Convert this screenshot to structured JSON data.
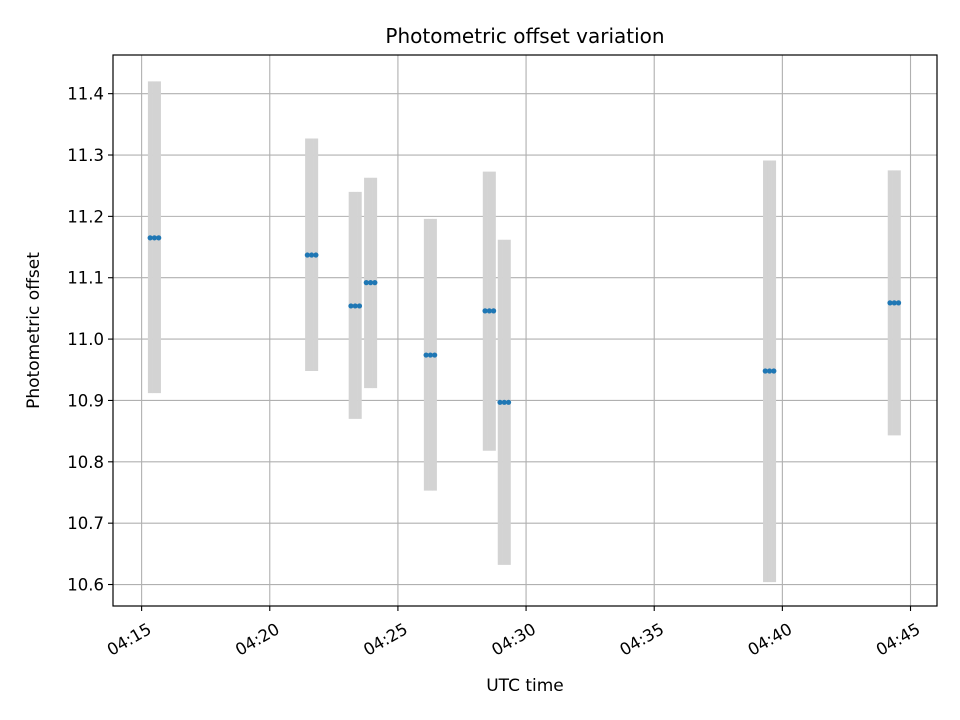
{
  "chart_data": {
    "type": "scatter",
    "title": "Photometric offset variation",
    "xlabel": "UTC time",
    "ylabel": "Photometric offset",
    "x_ticks": [
      "04:15",
      "04:20",
      "04:25",
      "04:30",
      "04:35",
      "04:40",
      "04:45"
    ],
    "y_ticks": [
      "10.6",
      "10.7",
      "10.8",
      "10.9",
      "11.0",
      "11.1",
      "11.2",
      "11.3",
      "11.4"
    ],
    "xlim": [
      "04:13:53",
      "04:46:02"
    ],
    "ylim": [
      10.565,
      11.463
    ],
    "grid": true,
    "colors": {
      "marker": "#1f77b4",
      "errorbar": "#d3d3d3",
      "grid": "#b0b0b0",
      "axis": "#000000"
    },
    "series": [
      {
        "marker": "dots",
        "errorbar": "lightgray",
        "points": [
          {
            "x": [
              "04:15:20",
              "04:15:30",
              "04:15:40"
            ],
            "y": 11.165,
            "yerr_low": 10.912,
            "yerr_high": 11.42
          },
          {
            "x": [
              "04:21:28",
              "04:21:38",
              "04:21:48"
            ],
            "y": 11.137,
            "yerr_low": 10.948,
            "yerr_high": 11.327
          },
          {
            "x": [
              "04:23:10",
              "04:23:20",
              "04:23:30"
            ],
            "y": 11.054,
            "yerr_low": 10.87,
            "yerr_high": 11.24
          },
          {
            "x": [
              "04:23:46",
              "04:23:56",
              "04:24:06"
            ],
            "y": 11.092,
            "yerr_low": 10.92,
            "yerr_high": 11.263
          },
          {
            "x": [
              "04:26:06",
              "04:26:16",
              "04:26:26"
            ],
            "y": 10.974,
            "yerr_low": 10.753,
            "yerr_high": 11.196
          },
          {
            "x": [
              "04:28:24",
              "04:28:34",
              "04:28:44"
            ],
            "y": 11.046,
            "yerr_low": 10.818,
            "yerr_high": 11.273
          },
          {
            "x": [
              "04:28:59",
              "04:29:09",
              "04:29:19"
            ],
            "y": 10.897,
            "yerr_low": 10.632,
            "yerr_high": 11.162
          },
          {
            "x": [
              "04:39:20",
              "04:39:30",
              "04:39:40"
            ],
            "y": 10.948,
            "yerr_low": 10.604,
            "yerr_high": 11.291
          },
          {
            "x": [
              "04:44:12",
              "04:44:22",
              "04:44:32"
            ],
            "y": 11.059,
            "yerr_low": 10.843,
            "yerr_high": 11.275
          }
        ]
      }
    ]
  }
}
